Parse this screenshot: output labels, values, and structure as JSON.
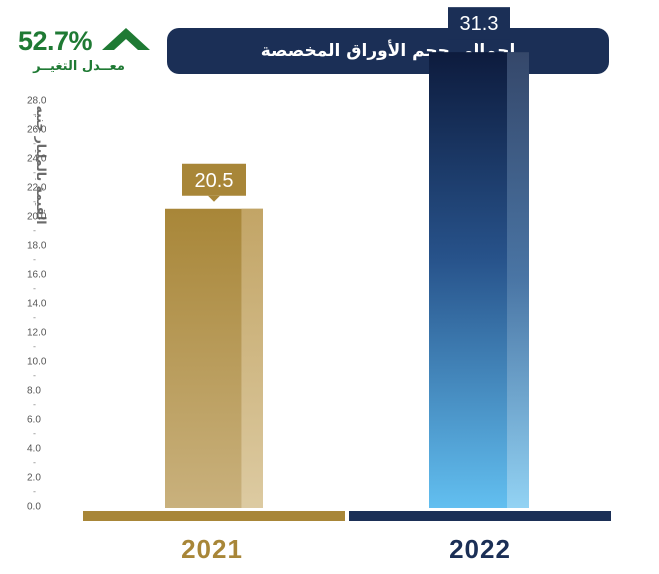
{
  "header": {
    "title": "إجمالي حجم الأوراق المخصصة",
    "change_pct": "52.7%",
    "change_label": "معــدل التغيــر",
    "change_color": "#1f7a34"
  },
  "chart_data": {
    "type": "bar",
    "title": "إجمالي حجم الأوراق المخصصة",
    "ylabel": "القيمة بالمليار جنيه",
    "xlabel": "",
    "categories": [
      "2021",
      "2022"
    ],
    "values": [
      20.5,
      31.3
    ],
    "value_labels": [
      "20.5",
      "31.3"
    ],
    "ylim": [
      0,
      28
    ],
    "yticks": [
      "28.0",
      "26.0",
      "24.0",
      "22.0",
      "20.0",
      "18.0",
      "16.0",
      "14.0",
      "12.0",
      "10.0",
      "8.0",
      "6.0",
      "4.0",
      "2.0",
      "0.0"
    ],
    "grid": false,
    "colors": {
      "2021": "#a88638",
      "2022": "#1b2f56"
    }
  }
}
